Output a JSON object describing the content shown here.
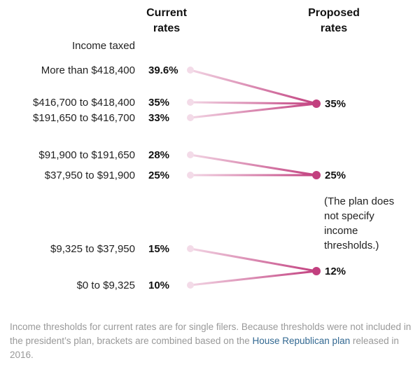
{
  "chart_data": {
    "type": "slope",
    "column_headers": {
      "current": [
        "Current",
        "rates"
      ],
      "proposed": [
        "Proposed",
        "rates"
      ]
    },
    "row_header": "Income taxed",
    "rows": [
      {
        "bracket": "More than $418,400",
        "current": 39.6,
        "current_label": "39.6%",
        "proposed": 35
      },
      {
        "bracket": "$416,700 to $418,400",
        "current": 35,
        "current_label": "35%",
        "proposed": 35
      },
      {
        "bracket": "$191,650 to $416,700",
        "current": 33,
        "current_label": "33%",
        "proposed": 35
      },
      {
        "bracket": "$91,900 to $191,650",
        "current": 28,
        "current_label": "28%",
        "proposed": 25
      },
      {
        "bracket": "$37,950 to $91,900",
        "current": 25,
        "current_label": "25%",
        "proposed": 25
      },
      {
        "bracket": "$9,325 to $37,950",
        "current": 15,
        "current_label": "15%",
        "proposed": 12
      },
      {
        "bracket": "$0 to $9,325",
        "current": 10,
        "current_label": "10%",
        "proposed": 12
      }
    ],
    "proposed_rates": [
      {
        "value": 35,
        "label": "35%"
      },
      {
        "value": 25,
        "label": "25%"
      },
      {
        "value": 12,
        "label": "12%"
      }
    ],
    "annotation": [
      "(The plan does",
      "not specify",
      "income",
      "thresholds.)"
    ]
  },
  "footnote": {
    "before": "Income thresholds for current rates are for single filers. Because thresholds were not included in the president’s plan, brackets are combined based on the ",
    "link": "House Republican plan",
    "after": " released in 2016."
  },
  "colors": {
    "line_light": "#f2d5e4",
    "line_dark": "#c2407f",
    "dot_light": "#f3dbe8",
    "dot_dark": "#c2407f"
  }
}
